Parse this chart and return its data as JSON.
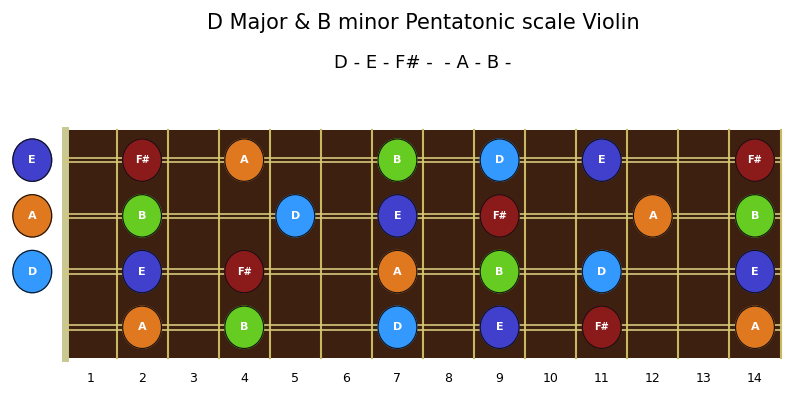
{
  "title": "D Major & B minor Pentatonic scale Violin",
  "subtitle": "D - E - F# -  - A - B -",
  "fret_count": 14,
  "string_count": 4,
  "bg_color": "#ffffff",
  "fretboard_color": "#3d2010",
  "string_color": "#d4c97a",
  "fret_line_color": "#c8b860",
  "notes": [
    {
      "fret": 2,
      "string": 4,
      "note": "F#",
      "color": "#8b1a1a"
    },
    {
      "fret": 4,
      "string": 4,
      "note": "A",
      "color": "#e07820"
    },
    {
      "fret": 7,
      "string": 4,
      "note": "B",
      "color": "#66cc22"
    },
    {
      "fret": 9,
      "string": 4,
      "note": "D",
      "color": "#3399ff"
    },
    {
      "fret": 11,
      "string": 4,
      "note": "E",
      "color": "#4040cc"
    },
    {
      "fret": 14,
      "string": 4,
      "note": "F#",
      "color": "#8b1a1a"
    },
    {
      "fret": 2,
      "string": 3,
      "note": "B",
      "color": "#66cc22"
    },
    {
      "fret": 5,
      "string": 3,
      "note": "D",
      "color": "#3399ff"
    },
    {
      "fret": 7,
      "string": 3,
      "note": "E",
      "color": "#4040cc"
    },
    {
      "fret": 9,
      "string": 3,
      "note": "F#",
      "color": "#8b1a1a"
    },
    {
      "fret": 12,
      "string": 3,
      "note": "A",
      "color": "#e07820"
    },
    {
      "fret": 14,
      "string": 3,
      "note": "B",
      "color": "#66cc22"
    },
    {
      "fret": 2,
      "string": 2,
      "note": "E",
      "color": "#4040cc"
    },
    {
      "fret": 4,
      "string": 2,
      "note": "F#",
      "color": "#8b1a1a"
    },
    {
      "fret": 7,
      "string": 2,
      "note": "A",
      "color": "#e07820"
    },
    {
      "fret": 9,
      "string": 2,
      "note": "B",
      "color": "#66cc22"
    },
    {
      "fret": 11,
      "string": 2,
      "note": "D",
      "color": "#3399ff"
    },
    {
      "fret": 14,
      "string": 2,
      "note": "E",
      "color": "#4040cc"
    },
    {
      "fret": 2,
      "string": 1,
      "note": "A",
      "color": "#e07820"
    },
    {
      "fret": 4,
      "string": 1,
      "note": "B",
      "color": "#66cc22"
    },
    {
      "fret": 7,
      "string": 1,
      "note": "D",
      "color": "#3399ff"
    },
    {
      "fret": 9,
      "string": 1,
      "note": "E",
      "color": "#4040cc"
    },
    {
      "fret": 11,
      "string": 1,
      "note": "F#",
      "color": "#8b1a1a"
    },
    {
      "fret": 14,
      "string": 1,
      "note": "A",
      "color": "#e07820"
    }
  ],
  "open_string_labels": [
    {
      "string": 4,
      "note": "E",
      "color": "#4040cc"
    },
    {
      "string": 3,
      "note": "A",
      "color": "#e07820"
    },
    {
      "string": 2,
      "note": "D",
      "color": "#3399ff"
    }
  ]
}
